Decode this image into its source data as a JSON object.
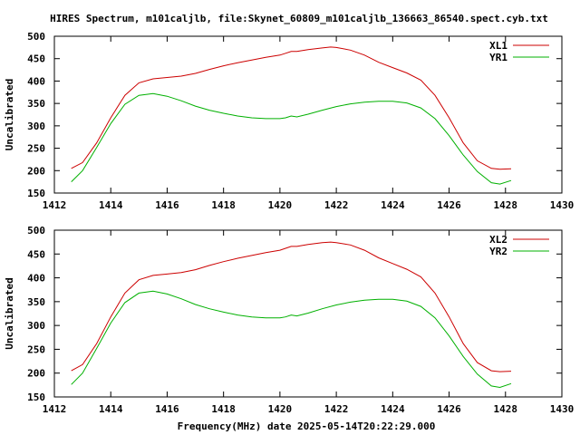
{
  "title": "HIRES Spectrum, m101caljlb, file:Skynet_60809_m101caljlb_136663_86540.spect.cyb.txt",
  "xlabel": "Frequency(MHz) date 2025-05-14T20:22:29.000",
  "colors": {
    "red": "#cc0000",
    "green": "#00b000"
  },
  "chart_data": [
    {
      "type": "line",
      "title": "HIRES Spectrum, m101caljlb, file:Skynet_60809_m101caljlb_136663_86540.spect.cyb.txt",
      "xlabel": "",
      "ylabel": "Uncalibrated",
      "xlim": [
        1412,
        1430
      ],
      "ylim": [
        150,
        500
      ],
      "xticks": [
        1412,
        1414,
        1416,
        1418,
        1420,
        1422,
        1424,
        1426,
        1428,
        1430
      ],
      "yticks": [
        150,
        200,
        250,
        300,
        350,
        400,
        450,
        500
      ],
      "grid": false,
      "legend": "top-right",
      "series": [
        {
          "name": "XL1",
          "color": "#cc0000",
          "x": [
            1412.6,
            1413.0,
            1413.5,
            1414.0,
            1414.5,
            1415.0,
            1415.5,
            1416.0,
            1416.5,
            1417.0,
            1417.5,
            1418.0,
            1418.5,
            1419.0,
            1419.5,
            1420.0,
            1420.2,
            1420.4,
            1420.6,
            1421.0,
            1421.5,
            1421.8,
            1422.0,
            1422.5,
            1423.0,
            1423.5,
            1424.0,
            1424.5,
            1425.0,
            1425.5,
            1426.0,
            1426.5,
            1427.0,
            1427.5,
            1427.8,
            1428.2
          ],
          "values": [
            205,
            218,
            262,
            318,
            368,
            396,
            405,
            408,
            411,
            417,
            426,
            434,
            441,
            447,
            453,
            458,
            462,
            466,
            466,
            470,
            474,
            476,
            475,
            469,
            458,
            442,
            430,
            418,
            402,
            368,
            318,
            262,
            222,
            205,
            203,
            204
          ]
        },
        {
          "name": "YR1",
          "color": "#00b000",
          "x": [
            1412.6,
            1413.0,
            1413.5,
            1414.0,
            1414.5,
            1415.0,
            1415.5,
            1416.0,
            1416.5,
            1417.0,
            1417.5,
            1418.0,
            1418.5,
            1419.0,
            1419.5,
            1420.0,
            1420.2,
            1420.4,
            1420.6,
            1421.0,
            1421.5,
            1422.0,
            1422.5,
            1423.0,
            1423.5,
            1424.0,
            1424.5,
            1425.0,
            1425.5,
            1426.0,
            1426.5,
            1427.0,
            1427.5,
            1427.8,
            1428.2
          ],
          "values": [
            175,
            200,
            252,
            305,
            348,
            368,
            372,
            366,
            356,
            344,
            335,
            328,
            322,
            318,
            316,
            316,
            318,
            322,
            320,
            326,
            335,
            343,
            349,
            353,
            355,
            355,
            351,
            340,
            316,
            278,
            235,
            198,
            173,
            170,
            178
          ]
        }
      ]
    },
    {
      "type": "line",
      "title": "",
      "xlabel": "Frequency(MHz) date 2025-05-14T20:22:29.000",
      "ylabel": "Uncalibrated",
      "xlim": [
        1412,
        1430
      ],
      "ylim": [
        150,
        500
      ],
      "xticks": [
        1412,
        1414,
        1416,
        1418,
        1420,
        1422,
        1424,
        1426,
        1428,
        1430
      ],
      "yticks": [
        150,
        200,
        250,
        300,
        350,
        400,
        450,
        500
      ],
      "grid": false,
      "legend": "top-right",
      "series": [
        {
          "name": "XL2",
          "color": "#cc0000",
          "x": [
            1412.6,
            1413.0,
            1413.5,
            1414.0,
            1414.5,
            1415.0,
            1415.5,
            1416.0,
            1416.5,
            1417.0,
            1417.5,
            1418.0,
            1418.5,
            1419.0,
            1419.5,
            1420.0,
            1420.2,
            1420.4,
            1420.6,
            1421.0,
            1421.5,
            1421.8,
            1422.0,
            1422.5,
            1423.0,
            1423.5,
            1424.0,
            1424.5,
            1425.0,
            1425.5,
            1426.0,
            1426.5,
            1427.0,
            1427.5,
            1427.8,
            1428.2
          ],
          "values": [
            205,
            218,
            262,
            318,
            368,
            396,
            405,
            408,
            411,
            417,
            426,
            434,
            441,
            447,
            453,
            458,
            462,
            466,
            466,
            470,
            474,
            475,
            474,
            469,
            458,
            442,
            430,
            418,
            402,
            368,
            318,
            262,
            222,
            205,
            203,
            204
          ]
        },
        {
          "name": "YR2",
          "color": "#00b000",
          "x": [
            1412.6,
            1413.0,
            1413.5,
            1414.0,
            1414.5,
            1415.0,
            1415.5,
            1416.0,
            1416.5,
            1417.0,
            1417.5,
            1418.0,
            1418.5,
            1419.0,
            1419.5,
            1420.0,
            1420.2,
            1420.4,
            1420.6,
            1421.0,
            1421.5,
            1422.0,
            1422.5,
            1423.0,
            1423.5,
            1424.0,
            1424.5,
            1425.0,
            1425.5,
            1426.0,
            1426.5,
            1427.0,
            1427.5,
            1427.8,
            1428.2
          ],
          "values": [
            176,
            200,
            252,
            305,
            348,
            368,
            372,
            366,
            356,
            344,
            335,
            328,
            322,
            318,
            316,
            316,
            318,
            322,
            320,
            326,
            335,
            343,
            349,
            353,
            355,
            355,
            351,
            340,
            316,
            278,
            235,
            198,
            173,
            170,
            178
          ]
        }
      ]
    }
  ]
}
